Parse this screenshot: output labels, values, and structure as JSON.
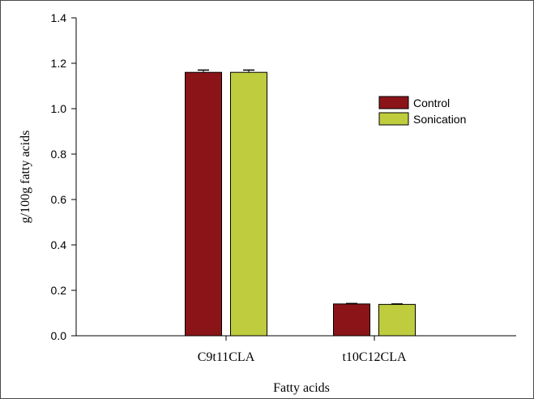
{
  "chart_data": {
    "type": "bar",
    "xlabel": "Fatty acids",
    "ylabel": "g/100g fatty acids",
    "ylim": [
      0,
      1.4
    ],
    "yticks": [
      "0.0",
      "0.2",
      "0.4",
      "0.6",
      "0.8",
      "1.0",
      "1.2",
      "1.4"
    ],
    "categories": [
      "C9t11CLA",
      "t10C12CLA"
    ],
    "series": [
      {
        "name": "Control",
        "values": [
          1.16,
          0.14
        ],
        "errors": [
          0.01,
          0.002
        ],
        "color": "#8b1418"
      },
      {
        "name": "Sonication",
        "values": [
          1.16,
          0.138
        ],
        "errors": [
          0.01,
          0.002
        ],
        "color": "#bfcc3e"
      }
    ],
    "legend_position": "top-right",
    "grid": false
  }
}
